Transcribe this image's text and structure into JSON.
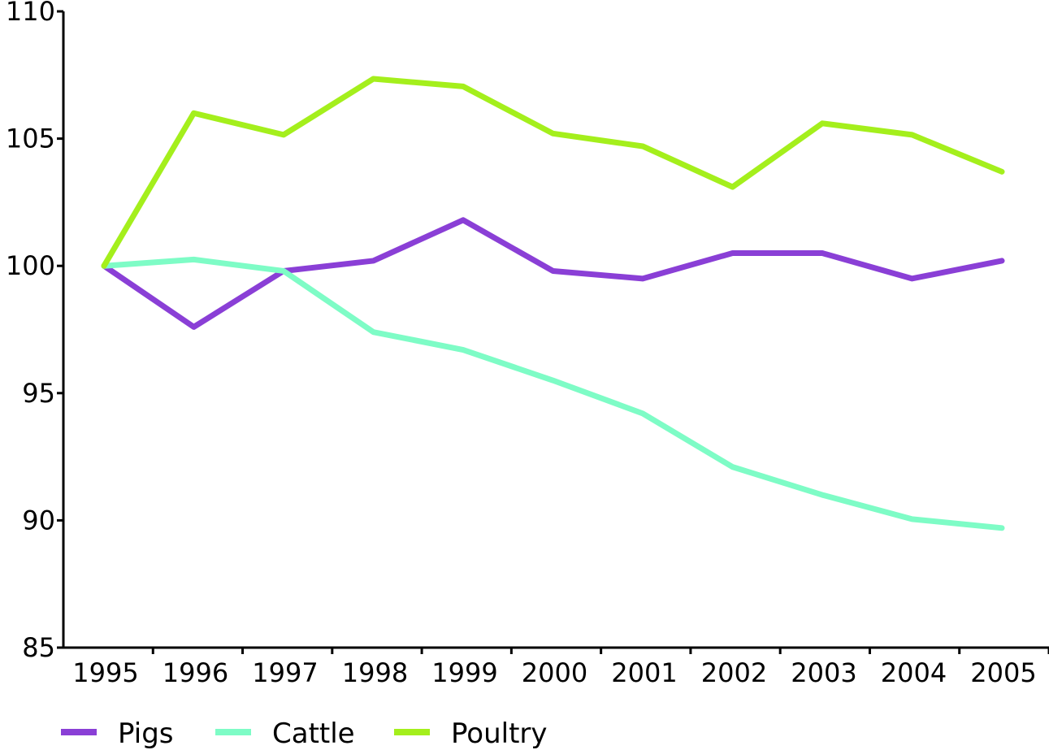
{
  "chart_data": {
    "type": "line",
    "title": "",
    "xlabel": "",
    "ylabel": "",
    "x": [
      "1995",
      "1996",
      "1997",
      "1998",
      "1999",
      "2000",
      "2001",
      "2002",
      "2003",
      "2004",
      "2005"
    ],
    "ylim": [
      85,
      110
    ],
    "yticks": [
      85,
      90,
      95,
      100,
      105,
      110
    ],
    "grid": false,
    "legend_position": "bottom-left",
    "series": [
      {
        "name": "Pigs",
        "color": "#8a3fd6",
        "values": [
          100.0,
          97.6,
          99.8,
          100.2,
          101.8,
          99.8,
          99.5,
          100.5,
          100.5,
          99.5,
          100.2
        ]
      },
      {
        "name": "Cattle",
        "color": "#7efcc6",
        "values": [
          100.0,
          100.25,
          99.8,
          97.4,
          96.7,
          95.5,
          94.2,
          92.1,
          91.0,
          90.05,
          89.7
        ]
      },
      {
        "name": "Poultry",
        "color": "#a4ef1c",
        "values": [
          100.0,
          106.0,
          105.15,
          107.35,
          107.05,
          105.2,
          104.7,
          103.1,
          105.6,
          105.15,
          103.7
        ]
      }
    ]
  }
}
